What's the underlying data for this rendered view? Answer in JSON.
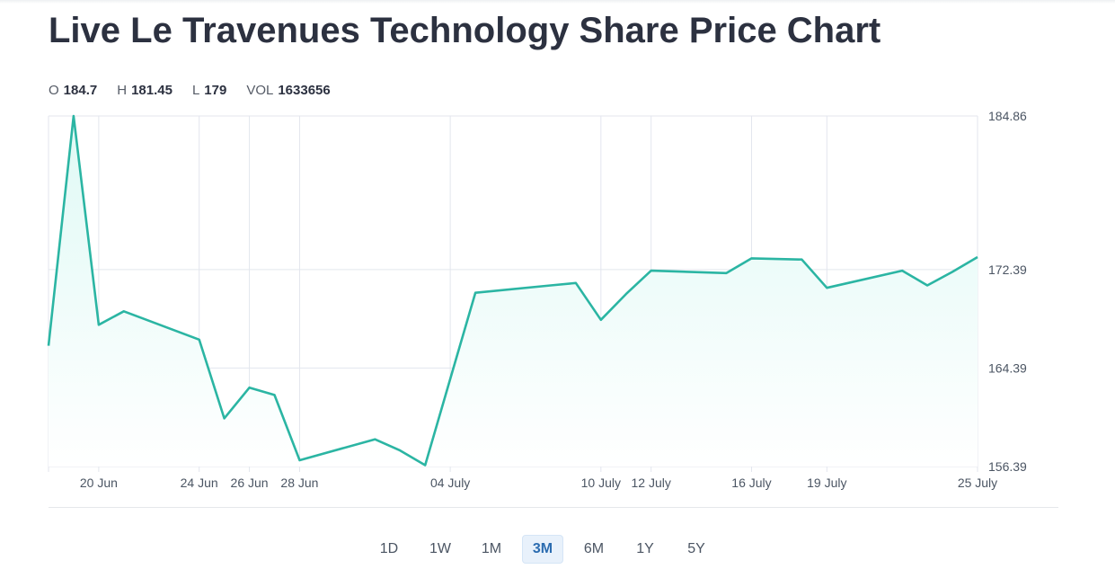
{
  "title": "Live Le Travenues Technology Share Price Chart",
  "ohlc": [
    {
      "label": "O",
      "value": "184.7"
    },
    {
      "label": "H",
      "value": "181.45"
    },
    {
      "label": "L",
      "value": "179"
    },
    {
      "label": "VOL",
      "value": "1633656"
    }
  ],
  "ranges": [
    "1D",
    "1W",
    "1M",
    "3M",
    "6M",
    "1Y",
    "5Y"
  ],
  "active_range": "3M",
  "colors": {
    "line": "#2bb5a3",
    "fill": "#e6fbf8",
    "grid": "#e3e6ee",
    "active_bg": "#e8f1fb",
    "active_text": "#2b6cb0"
  },
  "chart_data": {
    "type": "area",
    "ylim": [
      156.39,
      184.86
    ],
    "y_ticks": [
      "184.86",
      "172.39",
      "164.39",
      "156.39"
    ],
    "x_ticks": [
      "20 Jun",
      "24 Jun",
      "26 Jun",
      "28 Jun",
      "04 July",
      "10 July",
      "12 July",
      "16 July",
      "19 July",
      "25 July"
    ],
    "x_range": [
      "2024-06-18",
      "2024-07-25"
    ],
    "grid": true,
    "series": [
      {
        "x": [
          "2024-06-18",
          "2024-06-19",
          "2024-06-20",
          "2024-06-21",
          "2024-06-24",
          "2024-06-25",
          "2024-06-26",
          "2024-06-27",
          "2024-06-28",
          "2024-07-01",
          "2024-07-02",
          "2024-07-03",
          "2024-07-04",
          "2024-07-05",
          "2024-07-08",
          "2024-07-09",
          "2024-07-10",
          "2024-07-11",
          "2024-07-12",
          "2024-07-15",
          "2024-07-16",
          "2024-07-18",
          "2024-07-19",
          "2024-07-22",
          "2024-07-23",
          "2024-07-24",
          "2024-07-25"
        ],
        "values": [
          166.2,
          184.86,
          167.9,
          169.0,
          166.7,
          160.3,
          162.8,
          162.2,
          156.9,
          158.6,
          157.7,
          156.5,
          163.5,
          170.5,
          171.1,
          171.3,
          168.3,
          170.4,
          172.3,
          172.1,
          173.3,
          173.2,
          170.9,
          172.3,
          171.1,
          172.2,
          173.4
        ]
      }
    ]
  }
}
